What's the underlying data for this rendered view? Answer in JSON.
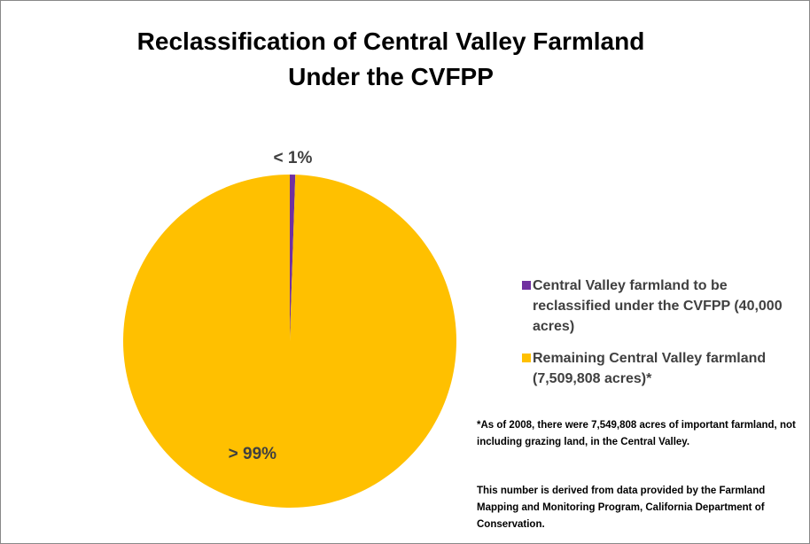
{
  "chart_data": {
    "type": "pie",
    "title": "Reclassification of Central Valley Farmland Under the CVFPP",
    "categories": [
      "Central Valley farmland to be reclassified under the CVFPP (40,000 acres)",
      "Remaining Central Valley farmland (7,509,808 acres)*"
    ],
    "values": [
      0.53,
      99.47
    ],
    "value_labels": [
      "< 1%",
      "> 99%"
    ],
    "colors": [
      "#7030a0",
      "#ffc000"
    ],
    "legend": "right",
    "notes": [
      "*As of 2008, there were 7,549,808 acres of important farmland, not including grazing land, in the Central Valley.",
      "This number is derived from data provided by the Farmland  Mapping and Monitoring Program, California Department of Conservation."
    ]
  }
}
